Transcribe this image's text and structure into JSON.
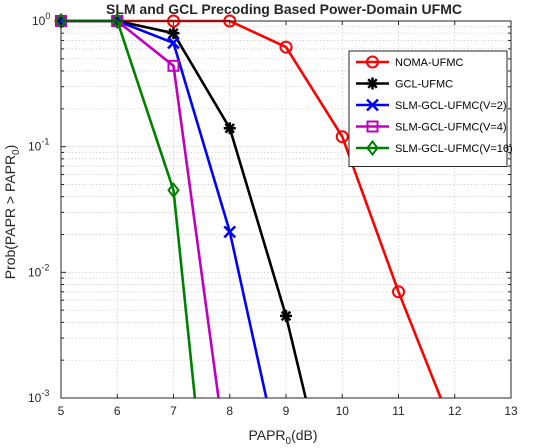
{
  "chart_data": {
    "type": "line",
    "title": "SLM and GCL Precoding Based Power-Domain UFMC",
    "xlabel": {
      "main": "PAPR",
      "sub": "0",
      "suffix": "(dB)"
    },
    "ylabel": {
      "prefix": "Prob(PAPR > PAPR",
      "sub": "0",
      "suffix": ")"
    },
    "xlim": [
      5,
      13
    ],
    "ylim": [
      0.001,
      1
    ],
    "yscale": "log",
    "grid": true,
    "legend_position": "top-right",
    "x_ticks": [
      "5",
      "6",
      "7",
      "8",
      "9",
      "10",
      "11",
      "12",
      "13"
    ],
    "y_ticks": [
      {
        "base": "10",
        "exp": "0",
        "value": 1
      },
      {
        "base": "10",
        "exp": "-1",
        "value": 0.1
      },
      {
        "base": "10",
        "exp": "-2",
        "value": 0.01
      },
      {
        "base": "10",
        "exp": "-3",
        "value": 0.001
      }
    ],
    "series": [
      {
        "name": "NOMA-UFMC",
        "color": "#ff0000",
        "marker": "circle",
        "line_x": [
          5,
          6,
          7,
          8,
          9,
          10,
          11,
          11.75
        ],
        "line_y": [
          1,
          1,
          1,
          1,
          0.62,
          0.12,
          0.007,
          0.001
        ],
        "marker_x": [
          5,
          6,
          7,
          8,
          9,
          10,
          11
        ],
        "marker_y": [
          1,
          1,
          1,
          1,
          0.62,
          0.12,
          0.007
        ]
      },
      {
        "name": "GCL-UFMC",
        "color": "#000000",
        "marker": "asterisk",
        "line_x": [
          5,
          6,
          7,
          8,
          9,
          9.35
        ],
        "line_y": [
          1,
          1,
          0.8,
          0.14,
          0.0045,
          0.001
        ],
        "marker_x": [
          5,
          6,
          7,
          8,
          9
        ],
        "marker_y": [
          1,
          1,
          0.8,
          0.14,
          0.0045
        ]
      },
      {
        "name": "SLM-GCL-UFMC(V=2)",
        "color": "#0000ff",
        "marker": "x",
        "line_x": [
          5,
          6,
          7,
          8,
          8.65
        ],
        "line_y": [
          1,
          1,
          0.67,
          0.021,
          0.001
        ],
        "marker_x": [
          5,
          6,
          7,
          8
        ],
        "marker_y": [
          1,
          1,
          0.67,
          0.021
        ]
      },
      {
        "name": "SLM-GCL-UFMC(V=4)",
        "color": "#bf00bf",
        "marker": "square",
        "line_x": [
          5,
          6,
          7,
          7.8
        ],
        "line_y": [
          1,
          1,
          0.44,
          0.001
        ],
        "marker_x": [
          5,
          6,
          7
        ],
        "marker_y": [
          1,
          1,
          0.44
        ]
      },
      {
        "name": "SLM-GCL-UFMC(V=16)",
        "color": "#008000",
        "marker": "diamond",
        "line_x": [
          5,
          6,
          7,
          7.38
        ],
        "line_y": [
          1,
          1,
          0.045,
          0.001
        ],
        "marker_x": [
          5,
          6,
          7
        ],
        "marker_y": [
          1,
          1,
          0.045
        ]
      }
    ]
  }
}
